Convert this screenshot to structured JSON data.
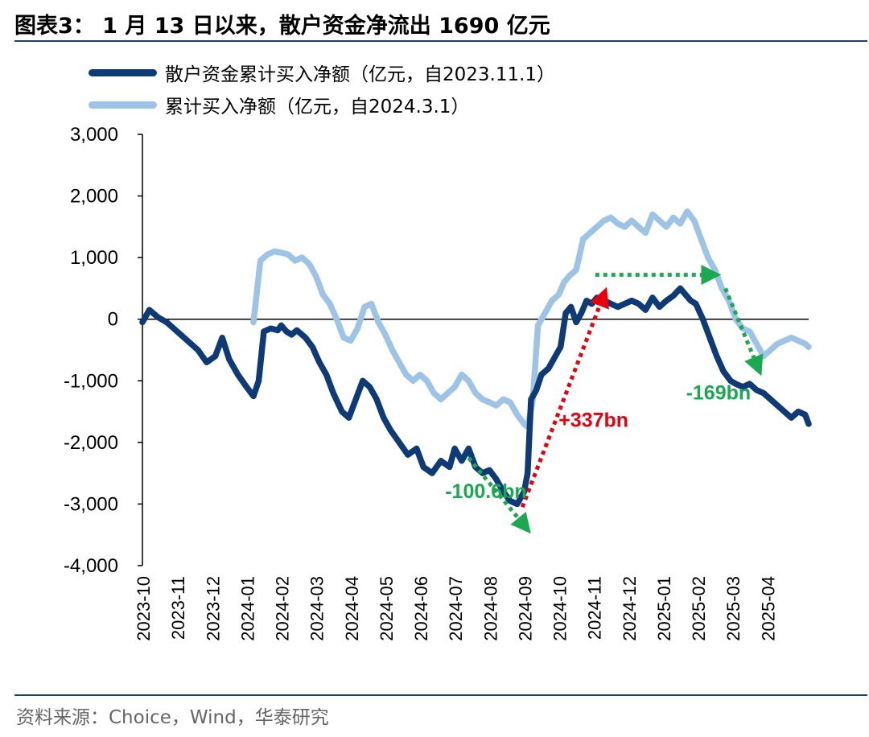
{
  "title": "图表3： 1 月 13 日以来，散户资金净流出 1690 亿元",
  "source": "资料来源：Choice，Wind，华泰研究",
  "colors": {
    "series1": "#0e3a78",
    "series2": "#9dc3e6",
    "axis": "#000000",
    "rule": "#1f3f73",
    "green": "#1aa850",
    "red": "#e8000b"
  },
  "chart_data": {
    "type": "line",
    "ylim": [
      -4000,
      3000
    ],
    "yticks": [
      3000,
      2000,
      1000,
      0,
      -1000,
      -2000,
      -3000,
      -4000
    ],
    "ytick_labels": [
      "3,000",
      "2,000",
      "1,000",
      "0",
      "-1,000",
      "-2,000",
      "-3,000",
      "-4,000"
    ],
    "x_range": [
      0,
      19.2
    ],
    "xtick_labels": [
      "2023-10",
      "2023-11",
      "2023-12",
      "2024-01",
      "2024-02",
      "2024-03",
      "2024-04",
      "2024-05",
      "2024-06",
      "2024-07",
      "2024-08",
      "2024-09",
      "2024-10",
      "2024-11",
      "2024-12",
      "2025-01",
      "2025-02",
      "2025-03",
      "2025-04"
    ],
    "series": [
      {
        "name": "散户资金累计买入净额（亿元，自2023.11.1）",
        "x": [
          0,
          0.2,
          0.45,
          0.7,
          1.0,
          1.3,
          1.6,
          1.85,
          2.1,
          2.3,
          2.5,
          2.75,
          3.0,
          3.2,
          3.35,
          3.5,
          3.7,
          3.9,
          4.0,
          4.15,
          4.3,
          4.45,
          4.7,
          4.9,
          5.1,
          5.3,
          5.5,
          5.75,
          5.95,
          6.15,
          6.35,
          6.55,
          6.75,
          6.95,
          7.15,
          7.4,
          7.65,
          7.9,
          8.1,
          8.35,
          8.6,
          8.85,
          9.0,
          9.2,
          9.4,
          9.6,
          9.8,
          10.0,
          10.2,
          10.4,
          10.6,
          10.8,
          11.0,
          11.1,
          11.2,
          11.35,
          11.5,
          11.7,
          11.9,
          12.05,
          12.2,
          12.35,
          12.5,
          12.65,
          12.8,
          12.95,
          13.1,
          13.3,
          13.5,
          13.7,
          13.9,
          14.1,
          14.3,
          14.5,
          14.7,
          14.9,
          15.1,
          15.3,
          15.5,
          15.65,
          15.8,
          15.95,
          16.15,
          16.35,
          16.55,
          16.75,
          16.95,
          17.1,
          17.3,
          17.5,
          17.7,
          17.9,
          18.1,
          18.3,
          18.5,
          18.7,
          18.9,
          19.1,
          19.2
        ],
        "values": [
          -50,
          150,
          30,
          -50,
          -200,
          -350,
          -500,
          -700,
          -600,
          -300,
          -650,
          -900,
          -1100,
          -1250,
          -1000,
          -200,
          -150,
          -180,
          -100,
          -200,
          -250,
          -180,
          -300,
          -450,
          -700,
          -900,
          -1200,
          -1500,
          -1600,
          -1300,
          -1000,
          -1100,
          -1300,
          -1600,
          -1800,
          -2000,
          -2200,
          -2100,
          -2400,
          -2500,
          -2300,
          -2400,
          -2100,
          -2300,
          -2100,
          -2400,
          -2500,
          -2450,
          -2600,
          -2800,
          -2950,
          -3000,
          -2800,
          -2500,
          -1300,
          -1150,
          -900,
          -800,
          -600,
          -450,
          100,
          200,
          -50,
          100,
          300,
          250,
          350,
          300,
          250,
          200,
          250,
          300,
          250,
          150,
          350,
          200,
          300,
          380,
          500,
          400,
          300,
          250,
          0,
          -300,
          -600,
          -850,
          -1000,
          -1050,
          -1100,
          -1050,
          -1150,
          -1200,
          -1300,
          -1400,
          -1500,
          -1600,
          -1500,
          -1550,
          -1700
        ]
      },
      {
        "name": "累计买入净额（亿元，自2024.3.1）",
        "x": [
          3.2,
          3.4,
          3.6,
          3.8,
          4.0,
          4.2,
          4.4,
          4.6,
          4.8,
          5.0,
          5.2,
          5.4,
          5.6,
          5.8,
          6.0,
          6.2,
          6.4,
          6.6,
          6.8,
          7.0,
          7.2,
          7.4,
          7.6,
          7.8,
          8.0,
          8.2,
          8.4,
          8.6,
          8.8,
          9.0,
          9.2,
          9.4,
          9.6,
          9.8,
          10.0,
          10.2,
          10.4,
          10.6,
          10.8,
          11.0,
          11.1,
          11.25,
          11.4,
          11.6,
          11.8,
          12.0,
          12.15,
          12.3,
          12.5,
          12.7,
          12.9,
          13.1,
          13.3,
          13.5,
          13.7,
          13.9,
          14.1,
          14.3,
          14.5,
          14.7,
          14.9,
          15.1,
          15.3,
          15.5,
          15.7,
          15.9,
          16.1,
          16.3,
          16.5,
          16.7,
          16.9,
          17.1,
          17.3,
          17.5,
          17.7,
          17.9,
          18.1,
          18.3,
          18.5,
          18.7,
          18.9,
          19.1,
          19.2
        ],
        "values": [
          -50,
          950,
          1050,
          1100,
          1080,
          1050,
          950,
          1000,
          900,
          700,
          400,
          250,
          0,
          -300,
          -350,
          -150,
          200,
          250,
          -50,
          -250,
          -500,
          -700,
          -900,
          -1000,
          -900,
          -1000,
          -1200,
          -1300,
          -1200,
          -1100,
          -900,
          -1000,
          -1200,
          -1300,
          -1350,
          -1400,
          -1300,
          -1350,
          -1550,
          -1700,
          -1750,
          -1300,
          -100,
          100,
          300,
          400,
          600,
          700,
          800,
          1300,
          1400,
          1500,
          1600,
          1650,
          1550,
          1500,
          1600,
          1500,
          1400,
          1700,
          1600,
          1500,
          1650,
          1550,
          1750,
          1600,
          1300,
          1000,
          800,
          500,
          300,
          0,
          -150,
          -200,
          -400,
          -600,
          -500,
          -400,
          -350,
          -300,
          -350,
          -400,
          -450
        ]
      }
    ],
    "annotations": [
      {
        "text": "-100.6bn",
        "color": "green",
        "x": 9.9,
        "y": -2900
      },
      {
        "text": "+337bn",
        "color": "red",
        "x": 13.0,
        "y": -1750
      },
      {
        "text": "-169bn",
        "color": "green",
        "x": 16.6,
        "y": -1300
      }
    ],
    "arrows": [
      {
        "color": "green",
        "from": [
          9.4,
          -2250
        ],
        "to": [
          11.05,
          -3380
        ]
      },
      {
        "color": "red",
        "from": [
          10.95,
          -3050
        ],
        "to": [
          13.3,
          400
        ]
      },
      {
        "color": "green",
        "from": [
          13.05,
          720
        ],
        "to": [
          16.45,
          720
        ]
      },
      {
        "color": "green",
        "from": [
          16.8,
          500
        ],
        "to": [
          17.75,
          -800
        ]
      }
    ]
  }
}
